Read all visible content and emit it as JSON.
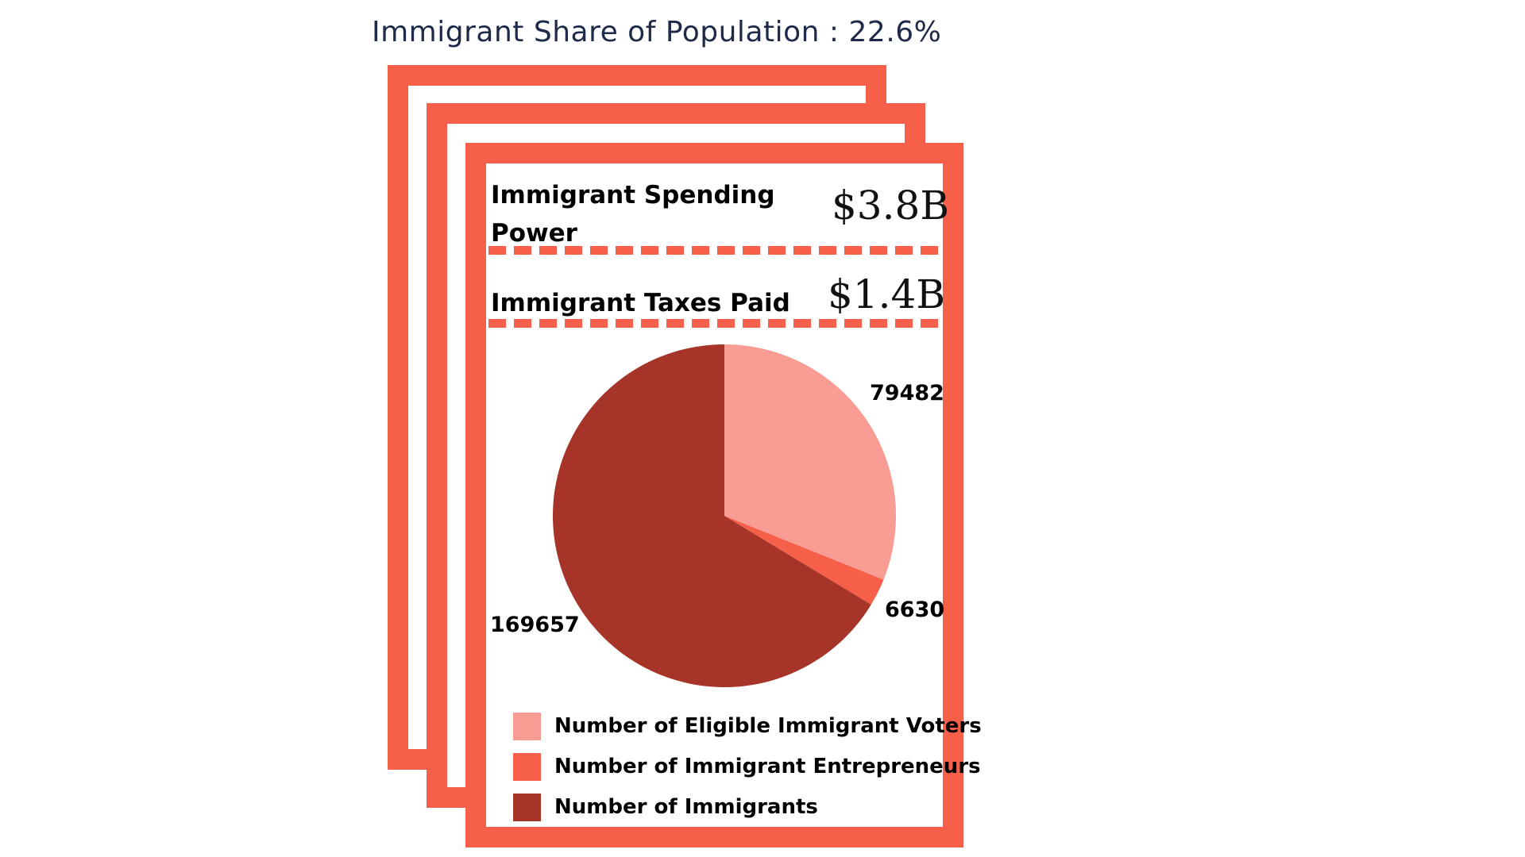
{
  "headline": {
    "label": "Immigrant Share of Population",
    "separator": ":",
    "value": "22.6%"
  },
  "rows": [
    {
      "label": "Immigrant Spending Power",
      "value": "$3.8B"
    },
    {
      "label": "Immigrant Taxes Paid",
      "value": "$1.4B"
    }
  ],
  "colors": {
    "frame": "#f65f4a",
    "headline": "#1e2a4a"
  },
  "chart_data": {
    "type": "pie",
    "title": "",
    "legend_position": "bottom",
    "slices": [
      {
        "name": "Number of Eligible Immigrant Voters",
        "value": 79482,
        "label": "79482",
        "color": "#f99d94"
      },
      {
        "name": "Number of Immigrant Entrepreneurs",
        "value": 6630,
        "label": "6630",
        "color": "#f65f4a"
      },
      {
        "name": "Number of Immigrants",
        "value": 169657,
        "label": "169657",
        "color": "#a63428"
      }
    ]
  }
}
